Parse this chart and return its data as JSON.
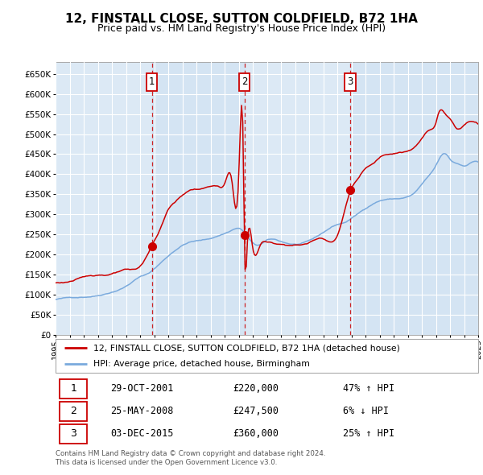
{
  "title": "12, FINSTALL CLOSE, SUTTON COLDFIELD, B72 1HA",
  "subtitle": "Price paid vs. HM Land Registry's House Price Index (HPI)",
  "ylim": [
    0,
    680000
  ],
  "yticks": [
    0,
    50000,
    100000,
    150000,
    200000,
    250000,
    300000,
    350000,
    400000,
    450000,
    500000,
    550000,
    600000,
    650000
  ],
  "ytick_labels": [
    "£0",
    "£50K",
    "£100K",
    "£150K",
    "£200K",
    "£250K",
    "£300K",
    "£350K",
    "£400K",
    "£450K",
    "£500K",
    "£550K",
    "£600K",
    "£650K"
  ],
  "sales": [
    {
      "date": 2001.83,
      "price": 220000,
      "label": "1"
    },
    {
      "date": 2008.4,
      "price": 247500,
      "label": "2"
    },
    {
      "date": 2015.92,
      "price": 360000,
      "label": "3"
    }
  ],
  "sale_dates_text": [
    "29-OCT-2001",
    "25-MAY-2008",
    "03-DEC-2015"
  ],
  "sale_prices_text": [
    "£220,000",
    "£247,500",
    "£360,000"
  ],
  "sale_pct_text": [
    "47% ↑ HPI",
    "6% ↓ HPI",
    "25% ↑ HPI"
  ],
  "legend_entries": [
    "12, FINSTALL CLOSE, SUTTON COLDFIELD, B72 1HA (detached house)",
    "HPI: Average price, detached house, Birmingham"
  ],
  "footer": "Contains HM Land Registry data © Crown copyright and database right 2024.\nThis data is licensed under the Open Government Licence v3.0.",
  "red_color": "#cc0000",
  "blue_color": "#7aaadd",
  "plot_bg": "#dce9f5",
  "grid_color": "#ffffff",
  "fig_bg": "#ffffff",
  "title_fontsize": 11,
  "subtitle_fontsize": 9
}
